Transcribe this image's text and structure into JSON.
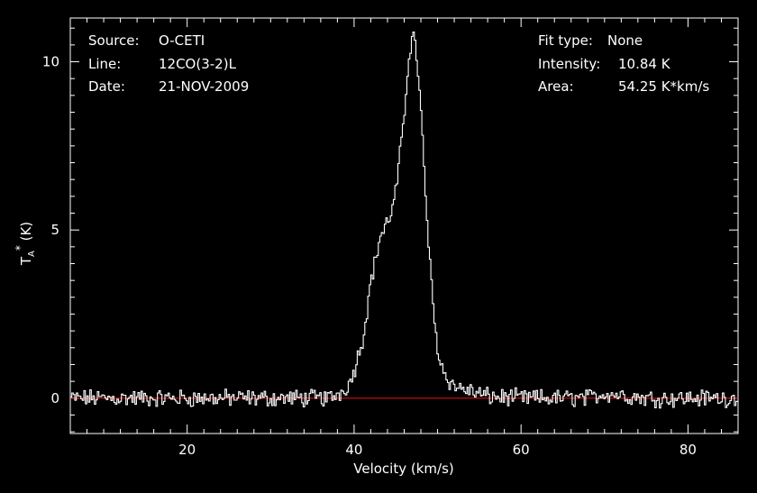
{
  "header_left": {
    "source_label": "Source:",
    "source_value": "O-CETI",
    "line_label": "Line:",
    "line_value": "12CO(3-2)L",
    "date_label": "Date:",
    "date_value": "21-NOV-2009"
  },
  "header_right": {
    "fit_type_label": "Fit type:",
    "fit_type_value": "None",
    "intensity_label": "Intensity:",
    "intensity_value": "10.84 K",
    "area_label": "Area:",
    "area_value": "54.25 K*km/s"
  },
  "chart_data": {
    "type": "line",
    "xlabel": "Velocity (km/s)",
    "ylabel": "T_A^* (K)",
    "xlim": [
      6,
      86
    ],
    "ylim": [
      -1.05,
      11.3
    ],
    "xticks": [
      20,
      40,
      60,
      80
    ],
    "yticks": [
      0,
      5,
      10
    ],
    "xtick_labels": [
      "20",
      "40",
      "60",
      "80"
    ],
    "ytick_labels": [
      "0",
      "5",
      "10"
    ],
    "grid": false,
    "style": {
      "spectrum_color": "#ffffff",
      "baseline_color": "#d01010",
      "axes_color": "#ffffff"
    },
    "baseline": {
      "y": 0
    },
    "spectrum_points": {
      "x": [
        6,
        14,
        20,
        30,
        37,
        38.5,
        39.5,
        40,
        41,
        42,
        42.5,
        43,
        43.5,
        44,
        44.5,
        45,
        45.5,
        46,
        46.3,
        46.6,
        47,
        47.5,
        48,
        48.5,
        49,
        49.3,
        49.7,
        50.2,
        51,
        52,
        54,
        56,
        60,
        68,
        70,
        75,
        86
      ],
      "y": [
        0,
        0,
        0,
        0,
        0,
        0.2,
        0.5,
        0.9,
        1.8,
        3.6,
        4.1,
        4.8,
        5.0,
        5.3,
        5.6,
        6.3,
        7.4,
        8.6,
        9.7,
        10.4,
        10.84,
        10.0,
        8.2,
        5.9,
        4.0,
        3.0,
        1.9,
        1.1,
        0.6,
        0.35,
        0.2,
        0.05,
        0,
        0,
        0.15,
        0,
        0
      ]
    }
  }
}
